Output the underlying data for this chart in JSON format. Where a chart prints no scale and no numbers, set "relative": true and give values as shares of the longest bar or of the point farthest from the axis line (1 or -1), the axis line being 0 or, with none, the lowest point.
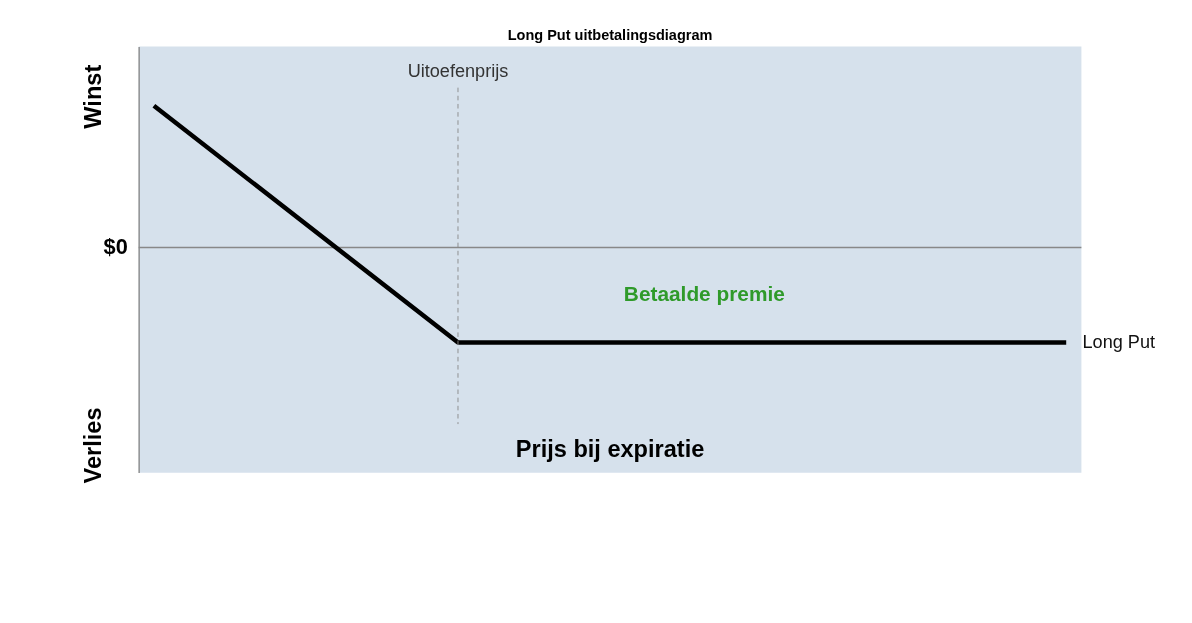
{
  "chart_data": {
    "type": "line",
    "title": "Long Put uitbetalingsdiagram",
    "relative": true,
    "tick_labels": false,
    "grid": false,
    "categories": [
      null,
      null,
      null,
      null
    ],
    "series": [
      {
        "name": "Long Put",
        "color": "#000000",
        "values": [
          1,
          -0.67,
          -0.67,
          -0.67
        ]
      }
    ],
    "annotations": [
      "Winst",
      "Verlies",
      "$0",
      "Uitoefenprijs",
      "Betaalde premie",
      "Prijs bij expiratie"
    ]
  }
}
